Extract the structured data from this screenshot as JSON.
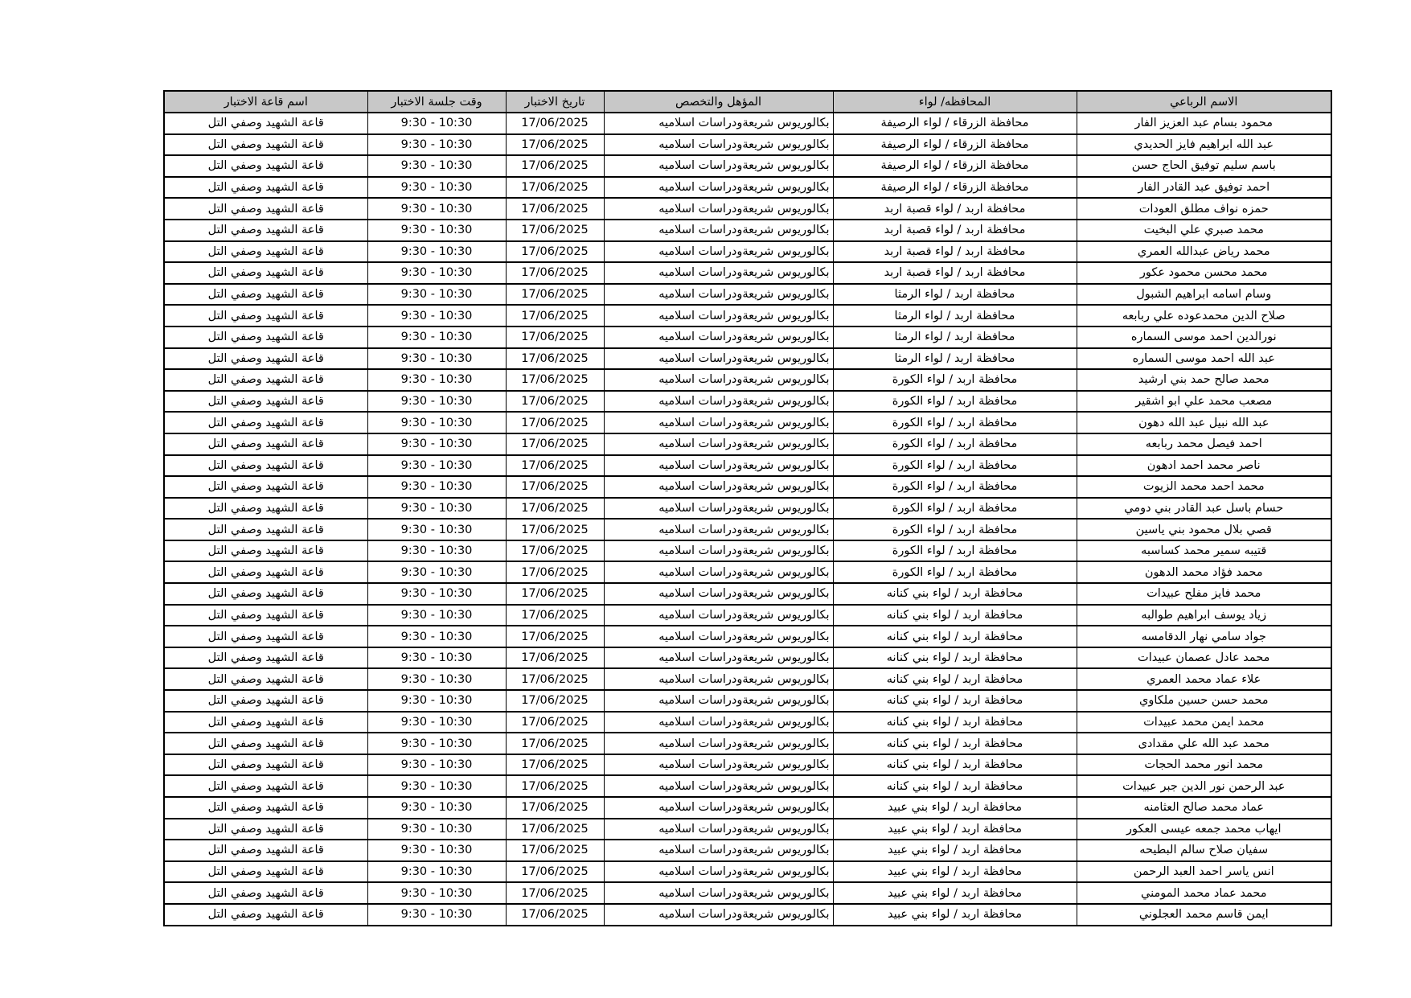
{
  "headers": {
    "name": "الاسم الرباعي",
    "province": "المحافظه/ لواء",
    "qualification": "المؤهل والتخصص",
    "date": "تاريخ الاختبار",
    "time": "وقت جلسة الاختبار",
    "hall": "اسم قاعة الاختبار"
  },
  "common": {
    "qualification": "بكالوريوس شريعةودراسات اسلاميه",
    "date": "17/06/2025",
    "time": "9:30 - 10:30",
    "hall": "قاعة الشهيد وصفي التل"
  },
  "rows": [
    {
      "name": "محمود بسام عبد العزيز الفار",
      "province": "محافظة الزرقاء / لواء الرصيفة"
    },
    {
      "name": "عبد الله ابراهيم فايز الحديدي",
      "province": "محافظة الزرقاء / لواء الرصيفة"
    },
    {
      "name": "باسم سليم توفيق الحاج حسن",
      "province": "محافظة الزرقاء / لواء الرصيفة"
    },
    {
      "name": "احمد توفيق عبد القادر الفار",
      "province": "محافظة الزرقاء / لواء الرصيفة"
    },
    {
      "name": "حمزه نواف مطلق العودات",
      "province": "محافظة اربد / لواء قصبة اربد"
    },
    {
      "name": "محمد صبري علي البخيت",
      "province": "محافظة اربد / لواء قصبة اربد"
    },
    {
      "name": "محمد رياض عبدالله العمري",
      "province": "محافظة اربد / لواء قصبة اربد"
    },
    {
      "name": "محمد محسن محمود عكور",
      "province": "محافظة اربد / لواء قصبة اربد"
    },
    {
      "name": "وسام اسامه ابراهيم الشبول",
      "province": "محافظة اربد /  لواء الرمثا"
    },
    {
      "name": "صلاح الدين محمدعوده علي ربابعه",
      "province": "محافظة اربد /  لواء الرمثا"
    },
    {
      "name": "نورالدين احمد موسى السماره",
      "province": "محافظة اربد /  لواء الرمثا"
    },
    {
      "name": "عبد الله احمد موسى السماره",
      "province": "محافظة اربد /  لواء الرمثا"
    },
    {
      "name": "محمد صالح حمد بني ارشيد",
      "province": "محافظة اربد / لواء الكورة"
    },
    {
      "name": "مصعب محمد علي ابو اشقير",
      "province": "محافظة اربد / لواء الكورة"
    },
    {
      "name": "عبد الله نبيل عبد الله دهون",
      "province": "محافظة اربد / لواء الكورة"
    },
    {
      "name": "احمد فيصل محمد ربابعه",
      "province": "محافظة اربد / لواء الكورة"
    },
    {
      "name": "ناصر محمد احمد ادهون",
      "province": "محافظة اربد / لواء الكورة"
    },
    {
      "name": "محمد احمد محمد الزيوت",
      "province": "محافظة اربد / لواء الكورة"
    },
    {
      "name": "حسام باسل عبد القادر بني دومي",
      "province": "محافظة اربد / لواء الكورة"
    },
    {
      "name": "قصي بلال محمود بني ياسين",
      "province": "محافظة اربد / لواء الكورة"
    },
    {
      "name": "قتيبه سمير محمد كساسبه",
      "province": "محافظة اربد / لواء الكورة"
    },
    {
      "name": "محمد فؤاد محمد الدهون",
      "province": "محافظة اربد / لواء الكورة"
    },
    {
      "name": "محمد فايز مفلح عبيدات",
      "province": "محافظة اربد / لواء بني كنانه"
    },
    {
      "name": "زياد يوسف ابراهيم طوالبه",
      "province": "محافظة اربد / لواء بني كنانه"
    },
    {
      "name": "جواد سامي نهار الدقامسه",
      "province": "محافظة اربد / لواء بني كنانه"
    },
    {
      "name": "محمد عادل عصمان عبيدات",
      "province": "محافظة اربد / لواء بني كنانه"
    },
    {
      "name": "علاء عماد محمد العمري",
      "province": "محافظة اربد / لواء بني كنانه"
    },
    {
      "name": "محمد حسن حسين ملكاوي",
      "province": "محافظة اربد / لواء بني كنانه"
    },
    {
      "name": "محمد ايمن محمد عبيدات",
      "province": "محافظة اربد / لواء بني كنانه"
    },
    {
      "name": "محمد عبد الله علي مقدادى",
      "province": "محافظة اربد / لواء بني كنانه"
    },
    {
      "name": "محمد انور محمد الحجات",
      "province": "محافظة اربد / لواء بني كنانه"
    },
    {
      "name": "عبد الرحمن نور الدين جبر عبيدات",
      "province": "محافظة اربد / لواء بني كنانه"
    },
    {
      "name": "عماد محمد صالح العثامنه",
      "province": "محافظة اربد / لواء بني عبيد"
    },
    {
      "name": "ايهاب محمد جمعه عيسى العكور",
      "province": "محافظة اربد / لواء بني عبيد"
    },
    {
      "name": "سفيان صلاح سالم البطيحه",
      "province": "محافظة اربد / لواء بني عبيد"
    },
    {
      "name": "انس ياسر احمد العبد الرحمن",
      "province": "محافظة اربد / لواء بني عبيد"
    },
    {
      "name": "محمد عماد محمد المومني",
      "province": "محافظة اربد / لواء بني عبيد"
    },
    {
      "name": "ايمن قاسم محمد العجلوني",
      "province": "محافظة اربد / لواء بني عبيد"
    }
  ]
}
